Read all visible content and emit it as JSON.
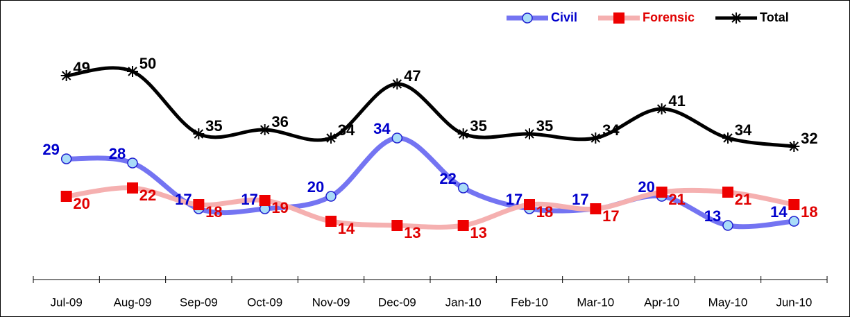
{
  "chart_data": {
    "type": "line",
    "categories": [
      "Jul-09",
      "Aug-09",
      "Sep-09",
      "Oct-09",
      "Nov-09",
      "Dec-09",
      "Jan-10",
      "Feb-10",
      "Mar-10",
      "Apr-10",
      "May-10",
      "Jun-10"
    ],
    "series": [
      {
        "name": "Civil",
        "color": "#7474f2",
        "marker": "circle",
        "marker_color": "#a9dcf8",
        "marker_edge": "#2020d0",
        "label_color": "#0000cc",
        "values": [
          29,
          28,
          17,
          17,
          20,
          34,
          22,
          17,
          17,
          20,
          13,
          14
        ]
      },
      {
        "name": "Forensic",
        "color": "#f5b0b0",
        "marker": "square",
        "marker_color": "#ee0000",
        "marker_edge": "#ee0000",
        "label_color": "#e00000",
        "values": [
          20,
          22,
          18,
          19,
          14,
          13,
          13,
          18,
          17,
          21,
          21,
          18
        ]
      },
      {
        "name": "Total",
        "color": "#000000",
        "marker": "asterisk",
        "marker_color": "#000000",
        "marker_edge": "#000000",
        "label_color": "#000000",
        "values": [
          49,
          50,
          35,
          36,
          34,
          47,
          35,
          35,
          34,
          41,
          34,
          32
        ]
      }
    ],
    "legend": "top-right",
    "smooth": true
  }
}
